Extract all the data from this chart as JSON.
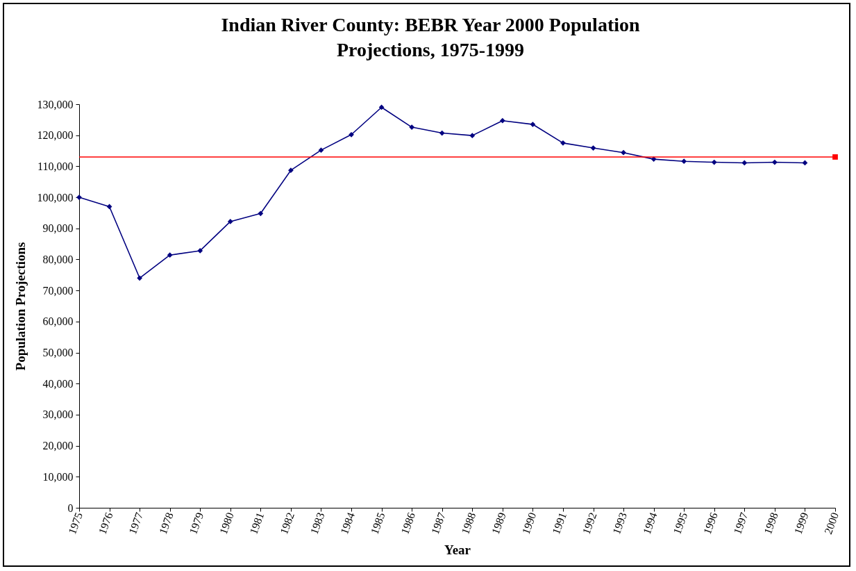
{
  "chart_data": {
    "type": "line",
    "title": "Indian River County: BEBR Year 2000 Population Projections, 1975-1999",
    "xlabel": "Year",
    "ylabel": "Population Projections",
    "categories": [
      "1975",
      "1976",
      "1977",
      "1978",
      "1979",
      "1980",
      "1981",
      "1982",
      "1983",
      "1984",
      "1985",
      "1986",
      "1987",
      "1988",
      "1989",
      "1990",
      "1991",
      "1992",
      "1993",
      "1994",
      "1995",
      "1996",
      "1997",
      "1998",
      "1999",
      "2000"
    ],
    "marker": "diamond",
    "series": [
      {
        "color": "#000080",
        "values": [
          100000,
          97000,
          74000,
          81400,
          82800,
          92200,
          94800,
          108700,
          115200,
          120200,
          129000,
          122600,
          120700,
          119900,
          124700,
          123500,
          117500,
          115900,
          114400,
          112300,
          111600,
          111300,
          111100,
          111300,
          111100,
          null
        ]
      },
      {
        "type": "scatter",
        "color": "#ff0000",
        "marker": "square",
        "values": [
          null,
          null,
          null,
          null,
          null,
          null,
          null,
          null,
          null,
          null,
          null,
          null,
          null,
          null,
          null,
          null,
          null,
          null,
          null,
          null,
          null,
          null,
          null,
          null,
          null,
          113000
        ]
      }
    ],
    "ref_lines": [
      {
        "axis": "y",
        "value": 113000,
        "color": "#ff0000"
      }
    ],
    "ylim": [
      0,
      130000
    ],
    "yticks": [
      0,
      {
        "value": 10000,
        "label": "10,000"
      },
      {
        "value": 20000,
        "label": "20,000"
      },
      {
        "value": 30000,
        "label": "30,000"
      },
      {
        "value": 40000,
        "label": "40,000"
      },
      {
        "value": 50000,
        "label": "50,000"
      },
      {
        "value": 60000,
        "label": "60,000"
      },
      {
        "value": 70000,
        "label": "70,000"
      },
      {
        "value": 80000,
        "label": "80,000"
      },
      {
        "value": 90000,
        "label": "90,000"
      },
      {
        "value": 100000,
        "label": "100,000"
      },
      {
        "value": 110000,
        "label": "110,000"
      },
      {
        "value": 120000,
        "label": "120,000"
      },
      {
        "value": 130000,
        "label": "130,000"
      }
    ],
    "grid": false
  }
}
